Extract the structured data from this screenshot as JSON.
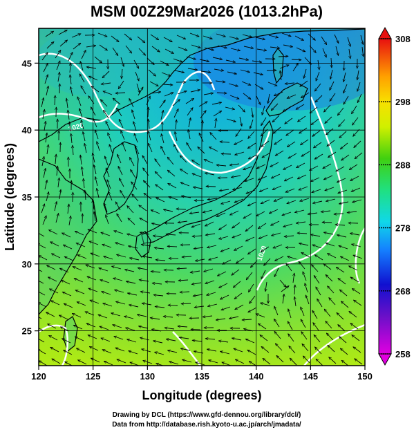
{
  "title": "MSM 00Z29Mar2026 (1013.2hPa)",
  "x_axis": {
    "label": "Longitude (degrees)",
    "range": [
      120,
      150
    ],
    "ticks": [
      "120",
      "125",
      "130",
      "135",
      "140",
      "145",
      "150"
    ]
  },
  "y_axis": {
    "label": "Latitude  (degrees)",
    "range": [
      22.4,
      47.6
    ],
    "ticks": [
      "25",
      "30",
      "35",
      "40",
      "45"
    ]
  },
  "colorbar": {
    "min": 258,
    "max": 308,
    "labels": [
      "308",
      "298",
      "288",
      "278",
      "268",
      "258"
    ]
  },
  "isobar_labels": [
    "1020",
    "1020"
  ],
  "footer": {
    "line1": "Drawing by DCL (https://www.gfd-dennou.org/library/dcl/)",
    "line2": "Data from http://database.rish.kyoto-u.ac.jp/arch/jmadata/"
  },
  "colors": {
    "land_outline": "#000000",
    "isobar": "#ffffff",
    "grid": "#000000",
    "vector": "#000000"
  }
}
